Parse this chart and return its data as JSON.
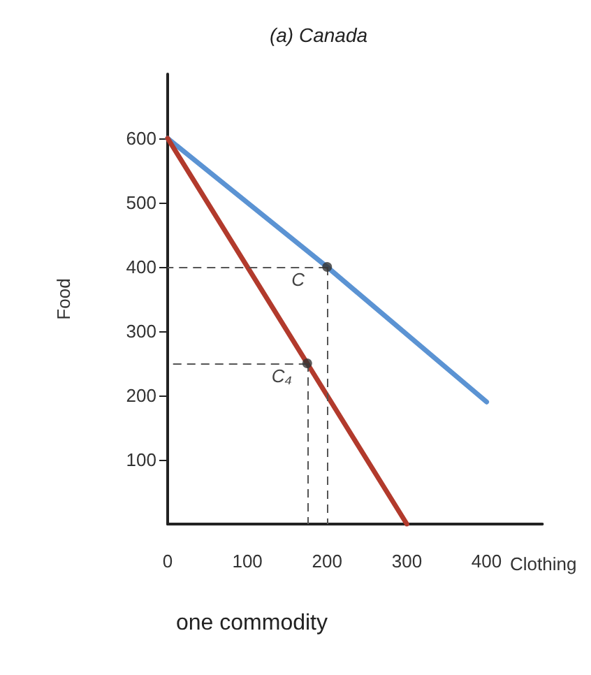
{
  "chart_data": {
    "type": "line",
    "title": "(a) Canada",
    "xlabel": "Clothing",
    "ylabel": "Food",
    "series": [
      {
        "color": "#5b93d3",
        "x": [
          0,
          200,
          400
        ],
        "values": [
          600,
          400,
          190
        ]
      },
      {
        "color": "#b23a2c",
        "x": [
          0,
          175,
          300
        ],
        "values": [
          600,
          250,
          0
        ]
      }
    ],
    "annotations": [
      {
        "text": "C",
        "x": 200,
        "y": 400
      },
      {
        "text": "C₄",
        "x": 175,
        "y": 250
      },
      "one commodity"
    ],
    "xlim": [
      0,
      470
    ],
    "ylim": [
      0,
      700
    ],
    "xticks": [
      0,
      100,
      200,
      300,
      400
    ],
    "yticks": [
      100,
      200,
      300,
      400,
      500,
      600
    ],
    "grid": false,
    "marker": "none",
    "line_style": "solid"
  }
}
